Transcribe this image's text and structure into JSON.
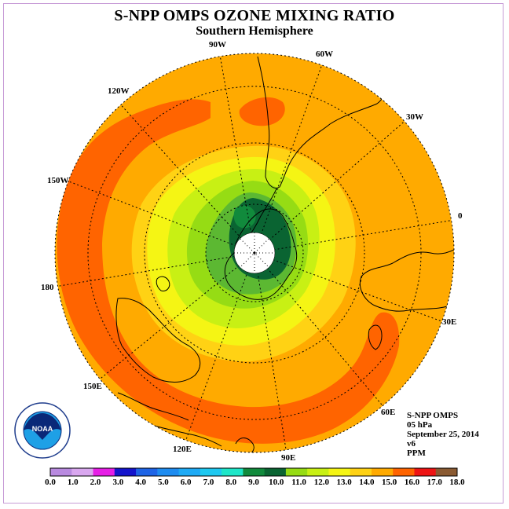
{
  "title": "S-NPP OMPS OZONE MIXING RATIO",
  "subtitle": "Southern Hemisphere",
  "longitude_labels": [
    {
      "name": "90W",
      "text": "90W"
    },
    {
      "name": "60W",
      "text": "60W"
    },
    {
      "name": "30W",
      "text": "30W"
    },
    {
      "name": "0",
      "text": "0"
    },
    {
      "name": "30E",
      "text": "30E"
    },
    {
      "name": "60E",
      "text": "60E"
    },
    {
      "name": "90E",
      "text": "90E"
    },
    {
      "name": "120E",
      "text": "120E"
    },
    {
      "name": "150E",
      "text": "150E"
    },
    {
      "name": "180",
      "text": "180"
    },
    {
      "name": "150W",
      "text": "150W"
    },
    {
      "name": "120W",
      "text": "120W"
    }
  ],
  "info": {
    "instrument": "S-NPP OMPS",
    "level": "05 hPa",
    "date": "September 25, 2014",
    "version": "v6",
    "units": "PPM"
  },
  "logo": {
    "text": "NOAA"
  },
  "colorbar": {
    "labels": [
      "0.0",
      "1.0",
      "2.0",
      "3.0",
      "4.0",
      "5.0",
      "6.0",
      "7.0",
      "8.0",
      "9.0",
      "10.0",
      "11.0",
      "12.0",
      "13.0",
      "14.0",
      "15.0",
      "16.0",
      "17.0",
      "18.0"
    ],
    "colors": [
      "#b98ae0",
      "#d9a7ef",
      "#e61ee6",
      "#1414cc",
      "#1e64e6",
      "#1e8cf0",
      "#1eaaf5",
      "#1ec8f0",
      "#1ee6c8",
      "#118a3c",
      "#0a6432",
      "#96dc14",
      "#c8f014",
      "#f5f514",
      "#ffd214",
      "#ffaa00",
      "#ff6400",
      "#ee1414",
      "#8a5a32"
    ]
  }
}
